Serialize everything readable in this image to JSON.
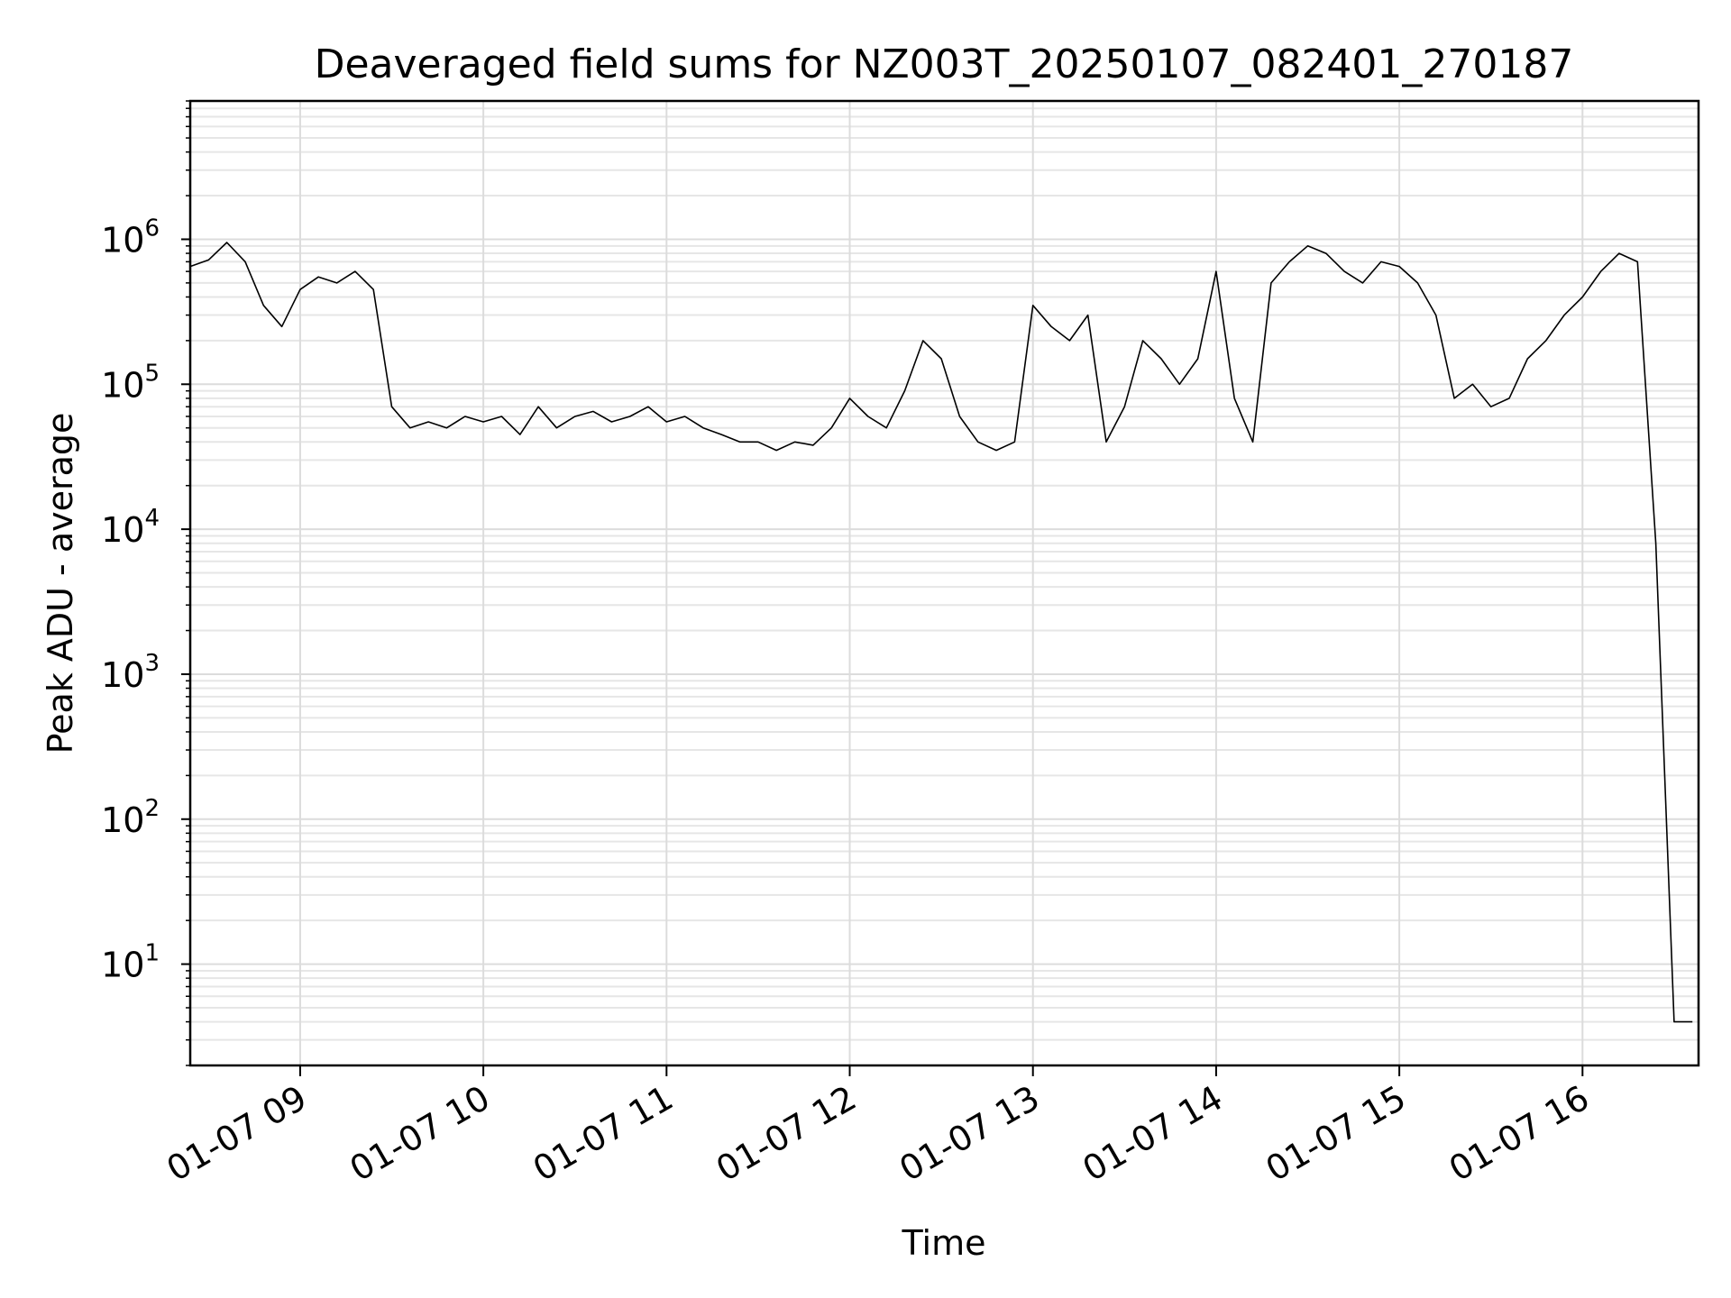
{
  "chart_data": {
    "type": "line",
    "title": "Deaveraged field sums for NZ003T_20250107_082401_270187",
    "xlabel": "Time",
    "ylabel": "Peak ADU - average",
    "x_scale": "time",
    "y_scale": "log",
    "xlim": [
      "2025-01-07 08:24",
      "2025-01-07 16:38"
    ],
    "ylim": [
      2,
      9000000
    ],
    "grid": true,
    "legend": "none",
    "line_color": "#000000",
    "x_ticks": [
      "01-07 09",
      "01-07 10",
      "01-07 11",
      "01-07 12",
      "01-07 13",
      "01-07 14",
      "01-07 15",
      "01-07 16"
    ],
    "x_tick_values": [
      "2025-01-07 09:00",
      "2025-01-07 10:00",
      "2025-01-07 11:00",
      "2025-01-07 12:00",
      "2025-01-07 13:00",
      "2025-01-07 14:00",
      "2025-01-07 15:00",
      "2025-01-07 16:00"
    ],
    "y_ticks": [
      {
        "value": 10,
        "base": "10",
        "exp": "1"
      },
      {
        "value": 100,
        "base": "10",
        "exp": "2"
      },
      {
        "value": 1000,
        "base": "10",
        "exp": "3"
      },
      {
        "value": 10000,
        "base": "10",
        "exp": "4"
      },
      {
        "value": 100000,
        "base": "10",
        "exp": "5"
      },
      {
        "value": 1000000,
        "base": "10",
        "exp": "6"
      }
    ],
    "series": [
      {
        "x": [
          "2025-01-07 08:24",
          "2025-01-07 08:30",
          "2025-01-07 08:36",
          "2025-01-07 08:42",
          "2025-01-07 08:48",
          "2025-01-07 08:54",
          "2025-01-07 09:00",
          "2025-01-07 09:06",
          "2025-01-07 09:12",
          "2025-01-07 09:18",
          "2025-01-07 09:24",
          "2025-01-07 09:30",
          "2025-01-07 09:36",
          "2025-01-07 09:42",
          "2025-01-07 09:48",
          "2025-01-07 09:54",
          "2025-01-07 10:00",
          "2025-01-07 10:06",
          "2025-01-07 10:12",
          "2025-01-07 10:18",
          "2025-01-07 10:24",
          "2025-01-07 10:30",
          "2025-01-07 10:36",
          "2025-01-07 10:42",
          "2025-01-07 10:48",
          "2025-01-07 10:54",
          "2025-01-07 11:00",
          "2025-01-07 11:06",
          "2025-01-07 11:12",
          "2025-01-07 11:18",
          "2025-01-07 11:24",
          "2025-01-07 11:30",
          "2025-01-07 11:36",
          "2025-01-07 11:42",
          "2025-01-07 11:48",
          "2025-01-07 11:54",
          "2025-01-07 12:00",
          "2025-01-07 12:06",
          "2025-01-07 12:12",
          "2025-01-07 12:18",
          "2025-01-07 12:24",
          "2025-01-07 12:30",
          "2025-01-07 12:36",
          "2025-01-07 12:42",
          "2025-01-07 12:48",
          "2025-01-07 12:54",
          "2025-01-07 13:00",
          "2025-01-07 13:06",
          "2025-01-07 13:12",
          "2025-01-07 13:18",
          "2025-01-07 13:24",
          "2025-01-07 13:30",
          "2025-01-07 13:36",
          "2025-01-07 13:42",
          "2025-01-07 13:48",
          "2025-01-07 13:54",
          "2025-01-07 14:00",
          "2025-01-07 14:06",
          "2025-01-07 14:12",
          "2025-01-07 14:18",
          "2025-01-07 14:24",
          "2025-01-07 14:30",
          "2025-01-07 14:36",
          "2025-01-07 14:42",
          "2025-01-07 14:48",
          "2025-01-07 14:54",
          "2025-01-07 15:00",
          "2025-01-07 15:06",
          "2025-01-07 15:12",
          "2025-01-07 15:18",
          "2025-01-07 15:24",
          "2025-01-07 15:30",
          "2025-01-07 15:36",
          "2025-01-07 15:42",
          "2025-01-07 15:48",
          "2025-01-07 15:54",
          "2025-01-07 16:00",
          "2025-01-07 16:06",
          "2025-01-07 16:12",
          "2025-01-07 16:18",
          "2025-01-07 16:24",
          "2025-01-07 16:30",
          "2025-01-07 16:36"
        ],
        "y": [
          650000,
          720000,
          950000,
          700000,
          350000,
          250000,
          450000,
          550000,
          500000,
          600000,
          450000,
          70000,
          50000,
          55000,
          50000,
          60000,
          55000,
          60000,
          45000,
          70000,
          50000,
          60000,
          65000,
          55000,
          60000,
          70000,
          55000,
          60000,
          50000,
          45000,
          40000,
          40000,
          35000,
          40000,
          38000,
          50000,
          80000,
          60000,
          50000,
          90000,
          200000,
          150000,
          60000,
          40000,
          35000,
          40000,
          350000,
          250000,
          200000,
          300000,
          40000,
          70000,
          200000,
          150000,
          100000,
          150000,
          600000,
          80000,
          40000,
          500000,
          700000,
          900000,
          800000,
          600000,
          500000,
          700000,
          650000,
          500000,
          300000,
          80000,
          100000,
          70000,
          80000,
          150000,
          200000,
          300000,
          400000,
          600000,
          800000,
          700000,
          8000,
          4,
          4
        ]
      }
    ]
  }
}
